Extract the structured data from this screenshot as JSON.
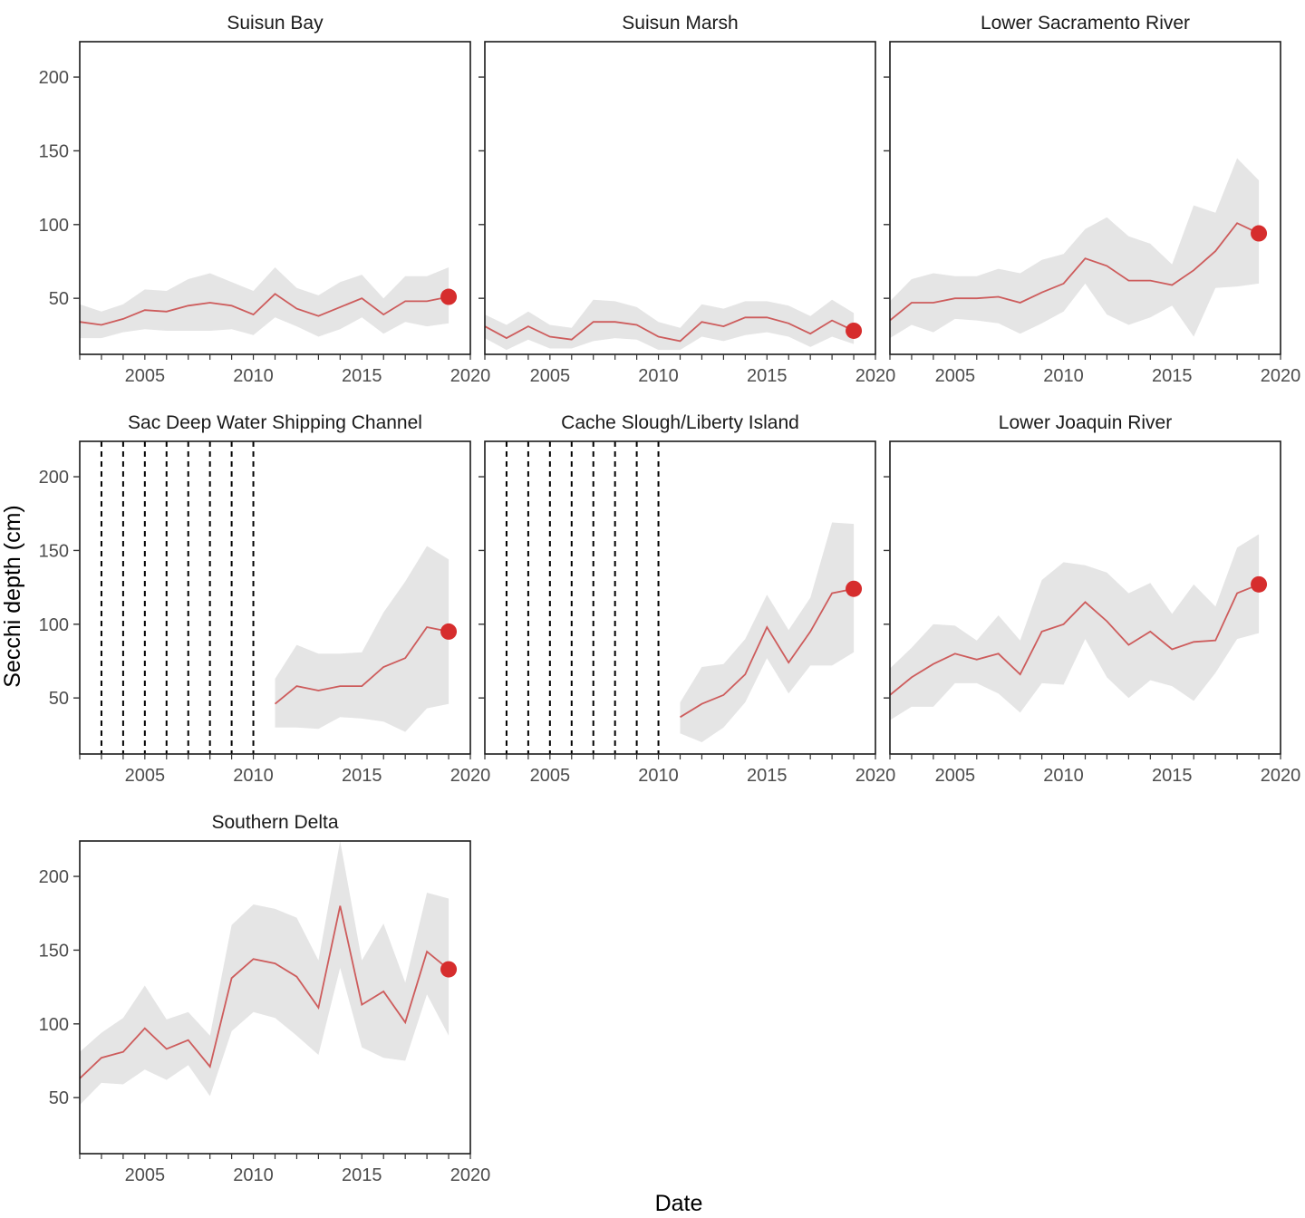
{
  "chart_data": {
    "type": "line",
    "xlabel": "Date",
    "ylabel": "Secchi depth (cm)",
    "xlim": [
      2002,
      2020
    ],
    "ylim": [
      12,
      224
    ],
    "x_ticks": [
      2005,
      2010,
      2015,
      2020
    ],
    "y_ticks": [
      50,
      100,
      150,
      200
    ],
    "grid": false,
    "colors": {
      "line": "#cd5c5c",
      "ribbon": "#e5e5e5",
      "point": "#d62d2d",
      "missing_year": "#000000"
    },
    "panels": [
      {
        "title": "Suisun Bay",
        "x": [
          2002,
          2003,
          2004,
          2005,
          2006,
          2007,
          2008,
          2009,
          2010,
          2011,
          2012,
          2013,
          2014,
          2015,
          2016,
          2017,
          2018,
          2019
        ],
        "y": [
          34,
          32,
          36,
          42,
          41,
          45,
          47,
          45,
          39,
          53,
          43,
          38,
          44,
          50,
          39,
          48,
          48,
          51
        ],
        "lower": [
          23,
          23,
          27,
          29,
          28,
          28,
          28,
          29,
          25,
          37,
          31,
          24,
          29,
          37,
          26,
          34,
          31,
          33
        ],
        "upper": [
          46,
          41,
          46,
          56,
          55,
          63,
          67,
          61,
          55,
          71,
          57,
          52,
          61,
          66,
          50,
          65,
          65,
          71
        ],
        "missing_years": [],
        "highlight": {
          "x": 2019,
          "y": 51
        }
      },
      {
        "title": "Suisun Marsh",
        "x": [
          2002,
          2003,
          2004,
          2005,
          2006,
          2007,
          2008,
          2009,
          2010,
          2011,
          2012,
          2013,
          2014,
          2015,
          2016,
          2017,
          2018,
          2019
        ],
        "y": [
          31,
          23,
          31,
          24,
          22,
          34,
          34,
          32,
          24,
          21,
          34,
          31,
          37,
          37,
          33,
          26,
          35,
          28
        ],
        "lower": [
          23,
          15,
          22,
          16,
          16,
          21,
          23,
          22,
          15,
          15,
          24,
          21,
          25,
          27,
          24,
          17,
          24,
          19
        ],
        "upper": [
          39,
          32,
          41,
          32,
          30,
          49,
          48,
          44,
          34,
          30,
          46,
          43,
          48,
          48,
          45,
          38,
          49,
          40
        ],
        "missing_years": [],
        "highlight": {
          "x": 2019,
          "y": 28
        }
      },
      {
        "title": "Lower Sacramento River",
        "x": [
          2002,
          2003,
          2004,
          2005,
          2006,
          2007,
          2008,
          2009,
          2010,
          2011,
          2012,
          2013,
          2014,
          2015,
          2016,
          2017,
          2018,
          2019
        ],
        "y": [
          35,
          47,
          47,
          50,
          50,
          51,
          47,
          54,
          60,
          77,
          72,
          62,
          62,
          59,
          69,
          82,
          101,
          94
        ],
        "lower": [
          23,
          32,
          27,
          36,
          35,
          33,
          26,
          33,
          41,
          60,
          39,
          32,
          37,
          45,
          24,
          57,
          58,
          60
        ],
        "upper": [
          48,
          63,
          67,
          65,
          65,
          70,
          67,
          76,
          80,
          97,
          105,
          92,
          87,
          73,
          113,
          108,
          145,
          130
        ],
        "missing_years": [],
        "highlight": {
          "x": 2019,
          "y": 94
        }
      },
      {
        "title": "Sac Deep Water Shipping Channel",
        "x": [
          2011,
          2012,
          2013,
          2014,
          2015,
          2016,
          2017,
          2018,
          2019
        ],
        "y": [
          46,
          58,
          55,
          58,
          58,
          71,
          77,
          98,
          95
        ],
        "lower": [
          30,
          30,
          29,
          37,
          36,
          34,
          27,
          43,
          46
        ],
        "upper": [
          63,
          86,
          80,
          80,
          81,
          108,
          129,
          153,
          144
        ],
        "missing_years": [
          2003,
          2004,
          2005,
          2006,
          2007,
          2008,
          2009,
          2010
        ],
        "highlight": {
          "x": 2019,
          "y": 95
        }
      },
      {
        "title": "Cache Slough/Liberty Island",
        "x": [
          2011,
          2012,
          2013,
          2014,
          2015,
          2016,
          2017,
          2018,
          2019
        ],
        "y": [
          37,
          46,
          52,
          66,
          98,
          74,
          95,
          121,
          124
        ],
        "lower": [
          26,
          20,
          30,
          47,
          77,
          53,
          72,
          72,
          81
        ],
        "upper": [
          47,
          71,
          73,
          90,
          120,
          96,
          118,
          169,
          168
        ],
        "missing_years": [
          2003,
          2004,
          2005,
          2006,
          2007,
          2008,
          2009,
          2010
        ],
        "highlight": {
          "x": 2019,
          "y": 124
        }
      },
      {
        "title": "Lower Joaquin River",
        "x": [
          2002,
          2003,
          2004,
          2005,
          2006,
          2007,
          2008,
          2009,
          2010,
          2011,
          2012,
          2013,
          2014,
          2015,
          2016,
          2017,
          2018,
          2019
        ],
        "y": [
          52,
          64,
          73,
          80,
          76,
          80,
          66,
          95,
          100,
          115,
          102,
          86,
          95,
          83,
          88,
          89,
          121,
          127
        ],
        "lower": [
          35,
          44,
          44,
          60,
          60,
          53,
          40,
          60,
          59,
          90,
          64,
          50,
          62,
          58,
          48,
          67,
          90,
          94
        ],
        "upper": [
          70,
          84,
          100,
          99,
          89,
          106,
          89,
          130,
          142,
          140,
          135,
          121,
          128,
          107,
          127,
          112,
          152,
          161
        ],
        "missing_years": [],
        "highlight": {
          "x": 2019,
          "y": 127
        }
      },
      {
        "title": "Southern Delta",
        "x": [
          2002,
          2003,
          2004,
          2005,
          2006,
          2007,
          2008,
          2009,
          2010,
          2011,
          2012,
          2013,
          2014,
          2015,
          2016,
          2017,
          2018,
          2019
        ],
        "y": [
          63,
          77,
          81,
          97,
          83,
          89,
          71,
          131,
          144,
          141,
          132,
          111,
          180,
          113,
          122,
          101,
          149,
          137
        ],
        "lower": [
          45,
          60,
          59,
          69,
          62,
          72,
          51,
          95,
          108,
          104,
          92,
          79,
          138,
          84,
          77,
          75,
          120,
          92
        ],
        "upper": [
          81,
          94,
          104,
          126,
          103,
          108,
          92,
          167,
          181,
          178,
          172,
          143,
          224,
          143,
          168,
          128,
          189,
          185
        ],
        "missing_years": [],
        "highlight": {
          "x": 2019,
          "y": 137
        }
      }
    ]
  }
}
